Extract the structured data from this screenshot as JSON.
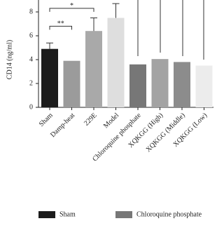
{
  "chart_data": {
    "type": "bar",
    "ylabel": "CD14 (ng/ml)",
    "categories": [
      "Sham",
      "Damp-heat",
      "229E",
      "Model",
      "Chloroquine phosphate",
      "XQKGG (High)",
      "XQKGG (Middle)",
      "XQKGG (Low)"
    ],
    "values": [
      4.9,
      3.9,
      6.4,
      7.5,
      3.6,
      4.05,
      3.8,
      3.5
    ],
    "errors": [
      0.5,
      null,
      1.1,
      1.2,
      null,
      null,
      null,
      null
    ],
    "colors": [
      "#1c1c1c",
      "#9b9b9b",
      "#a9a9a9",
      "#dedede",
      "#777777",
      "#a3a3a3",
      "#8c8c8c",
      "#ececec"
    ],
    "ylim": [
      0,
      9
    ],
    "yticks": [
      0,
      2,
      4,
      6,
      8
    ],
    "annotations": [
      {
        "text": "*",
        "from": 0,
        "to": 2,
        "y": 8.3
      },
      {
        "text": "**",
        "from": 0,
        "to": 1,
        "y": 6.8
      }
    ],
    "legend": [
      {
        "label": "Sham",
        "color": "#1c1c1c"
      },
      {
        "label": "Chloroquine phosphate",
        "color": "#777777"
      }
    ]
  }
}
